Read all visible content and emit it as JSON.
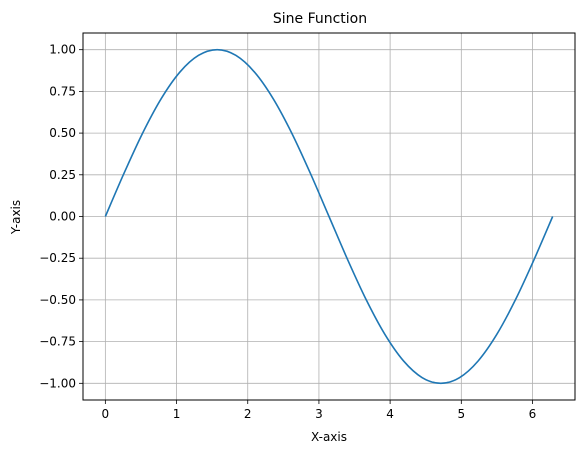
{
  "chart_data": {
    "type": "line",
    "title": "Sine Function",
    "xlabel": "X-axis",
    "ylabel": "Y-axis",
    "xlim": [
      -0.314,
      6.597
    ],
    "ylim": [
      -1.1,
      1.1
    ],
    "xticks": [
      0,
      1,
      2,
      3,
      4,
      5,
      6
    ],
    "xtick_labels": [
      "0",
      "1",
      "2",
      "3",
      "4",
      "5",
      "6"
    ],
    "yticks": [
      1.0,
      0.75,
      0.5,
      0.25,
      0.0,
      -0.25,
      -0.5,
      -0.75,
      -1.0
    ],
    "ytick_labels": [
      "1.00",
      "0.75",
      "0.50",
      "0.25",
      "0.00",
      "−0.25",
      "−0.50",
      "−0.75",
      "−1.00"
    ],
    "grid": true,
    "series": [
      {
        "color": "#1f77b4",
        "x": [
          0,
          0.2618,
          0.5236,
          0.7854,
          1.0472,
          1.309,
          1.5708,
          1.8326,
          2.0944,
          2.3562,
          2.618,
          2.8798,
          3.1416,
          3.4034,
          3.6652,
          3.927,
          4.1888,
          4.4506,
          4.7124,
          4.9742,
          5.236,
          5.4978,
          5.7596,
          6.0214,
          6.2832
        ],
        "y": [
          0,
          0.2588,
          0.5,
          0.7071,
          0.866,
          0.9659,
          1.0,
          0.9659,
          0.866,
          0.7071,
          0.5,
          0.2588,
          0,
          -0.2588,
          -0.5,
          -0.7071,
          -0.866,
          -0.9659,
          -1.0,
          -0.9659,
          -0.866,
          -0.7071,
          -0.5,
          -0.2588,
          0
        ]
      }
    ]
  }
}
